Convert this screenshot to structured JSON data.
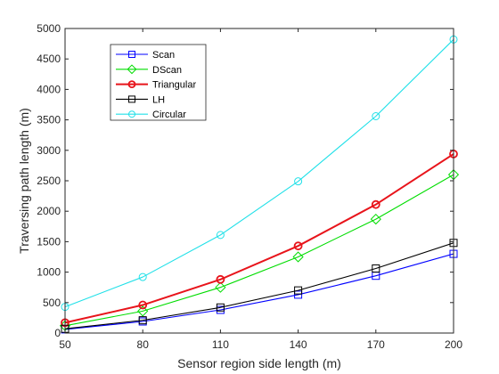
{
  "chart_data": {
    "type": "line",
    "xlabel": "Sensor region side length (m)",
    "ylabel": "Traversing path length (m)",
    "x": [
      50,
      80,
      110,
      140,
      170,
      200
    ],
    "xlim": [
      50,
      200
    ],
    "ylim": [
      0,
      5000
    ],
    "xticks": [
      "50",
      "80",
      "110",
      "140",
      "170",
      "200"
    ],
    "yticks": [
      "0",
      "500",
      "1000",
      "1500",
      "2000",
      "2500",
      "3000",
      "3500",
      "4000",
      "4500",
      "5000"
    ],
    "grid": false,
    "legend_placement": "top-left",
    "series": [
      {
        "name": "Scan",
        "values": [
          60,
          190,
          380,
          630,
          940,
          1300
        ],
        "color": "#0000ff",
        "marker": "square"
      },
      {
        "name": "DScan",
        "values": [
          120,
          360,
          750,
          1250,
          1870,
          2600
        ],
        "color": "#00dd00",
        "marker": "diamond"
      },
      {
        "name": "Triangular",
        "values": [
          170,
          460,
          880,
          1430,
          2110,
          2940
        ],
        "color": "#e8141b",
        "marker": "circle"
      },
      {
        "name": "LH",
        "values": [
          70,
          210,
          420,
          700,
          1060,
          1480
        ],
        "color": "#000000",
        "marker": "square"
      },
      {
        "name": "Circular",
        "values": [
          430,
          920,
          1610,
          2490,
          3560,
          4820
        ],
        "color": "#20e0e8",
        "marker": "circle"
      }
    ]
  }
}
